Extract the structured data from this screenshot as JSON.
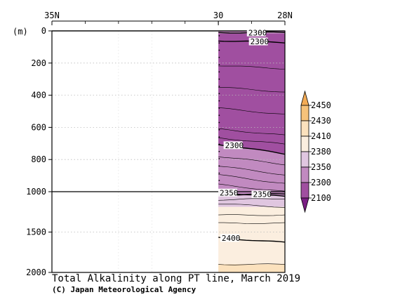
{
  "chart_data": {
    "type": "heatmap",
    "title": "Total Alkalinity along PT line, March 2019",
    "credit": "(C) Japan Meteorological Agency",
    "y_unit": "(m)",
    "x_ticks": [
      {
        "lat": 35,
        "label": "35N"
      },
      {
        "lat": 30,
        "label": "30"
      },
      {
        "lat": 28,
        "label": "28N"
      }
    ],
    "x_range": [
      35,
      28
    ],
    "y_ticks": [
      {
        "depth": 0,
        "label": "0"
      },
      {
        "depth": 200,
        "label": "200"
      },
      {
        "depth": 400,
        "label": "400"
      },
      {
        "depth": 600,
        "label": "600"
      },
      {
        "depth": 800,
        "label": "800"
      },
      {
        "depth": 1000,
        "label": "1000"
      },
      {
        "depth": 1500,
        "label": "1500"
      },
      {
        "depth": 2000,
        "label": "2000"
      }
    ],
    "y_range": [
      0,
      2000
    ],
    "y_scale": "two-segment: 0-1000 m and 1000-2000 m at different scales",
    "data_lat_range": [
      30,
      28
    ],
    "colorbar": {
      "levels": [
        "2100",
        "2300",
        "2350",
        "2380",
        "2410",
        "2430",
        "2450"
      ],
      "colors": [
        "#a04fa0",
        "#c18ac0",
        "#e0c6e0",
        "#fbeedf",
        "#fbe1bd",
        "#f6c27a"
      ],
      "under_color": "#7a1e83",
      "over_color": "#f3ab55"
    },
    "bands": [
      {
        "range": "2300-2350",
        "color": "#c18ac0",
        "top_depth": 0,
        "top_slope": 0,
        "bottom_depth": 18,
        "bottom_slope": 0
      },
      {
        "range": "2100-2300",
        "color": "#a04fa0",
        "top_depth": 18,
        "top_slope": 0,
        "bottom_depth": 710,
        "bottom_slope": 55
      },
      {
        "range": "2300-2350",
        "color": "#c18ac0",
        "top_depth": 710,
        "top_slope": 55,
        "bottom_depth": 1050,
        "bottom_slope": 0
      },
      {
        "range": "2350-2380",
        "color": "#e0c6e0",
        "top_depth": 1050,
        "top_slope": 0,
        "bottom_depth": 1190,
        "bottom_slope": 0
      },
      {
        "range": "2380-2410",
        "color": "#fbeedf",
        "top_depth": 1190,
        "top_slope": 0,
        "bottom_depth": 1900,
        "bottom_slope": 0
      },
      {
        "range": "2410-2430",
        "color": "#fbe1bd",
        "top_depth": 1900,
        "top_slope": 0,
        "bottom_depth": 2000,
        "bottom_slope": 0
      }
    ],
    "contours": [
      {
        "value": "2300",
        "depth": 10,
        "slope": 0,
        "bold": true,
        "label_at": 0.45
      },
      {
        "value": "2300",
        "depth": 60,
        "slope": 12,
        "bold": true,
        "label_at": 0.48
      },
      {
        "value": "",
        "depth": 215,
        "slope": 20,
        "bold": false
      },
      {
        "value": "",
        "depth": 350,
        "slope": 30,
        "bold": false
      },
      {
        "value": "",
        "depth": 480,
        "slope": 40,
        "bold": false
      },
      {
        "value": "",
        "depth": 610,
        "slope": 40,
        "bold": false
      },
      {
        "value": "",
        "depth": 665,
        "slope": 40,
        "bold": false
      },
      {
        "value": "2300",
        "depth": 705,
        "slope": 60,
        "bold": true,
        "label_at": 0.1
      },
      {
        "value": "",
        "depth": 780,
        "slope": 50,
        "bold": false
      },
      {
        "value": "",
        "depth": 840,
        "slope": 55,
        "bold": false
      },
      {
        "value": "",
        "depth": 895,
        "slope": 55,
        "bold": false
      },
      {
        "value": "",
        "depth": 955,
        "slope": 45,
        "bold": false
      },
      {
        "value": "2350",
        "depth": 1010,
        "slope": 50,
        "bold": true,
        "label_at": 0.02
      },
      {
        "value": "2350",
        "depth": 1040,
        "slope": -15,
        "bold": true,
        "label_at": 0.52
      },
      {
        "value": "",
        "depth": 1100,
        "slope": -15,
        "bold": false
      },
      {
        "value": "",
        "depth": 1150,
        "slope": 40,
        "bold": false
      },
      {
        "value": "",
        "depth": 1290,
        "slope": 0,
        "bold": false
      },
      {
        "value": "",
        "depth": 1390,
        "slope": 0,
        "bold": false
      },
      {
        "value": "2400",
        "depth": 1570,
        "slope": 60,
        "bold": true,
        "label_at": 0.05
      },
      {
        "value": "",
        "depth": 1900,
        "slope": 0,
        "bold": false
      }
    ],
    "reference_lines": [
      {
        "depth": 0,
        "span": "full"
      },
      {
        "depth": 1000,
        "span": "full"
      }
    ],
    "grid": "dotted horizontal at 200, 400, 600, 800 and 1500 m"
  }
}
